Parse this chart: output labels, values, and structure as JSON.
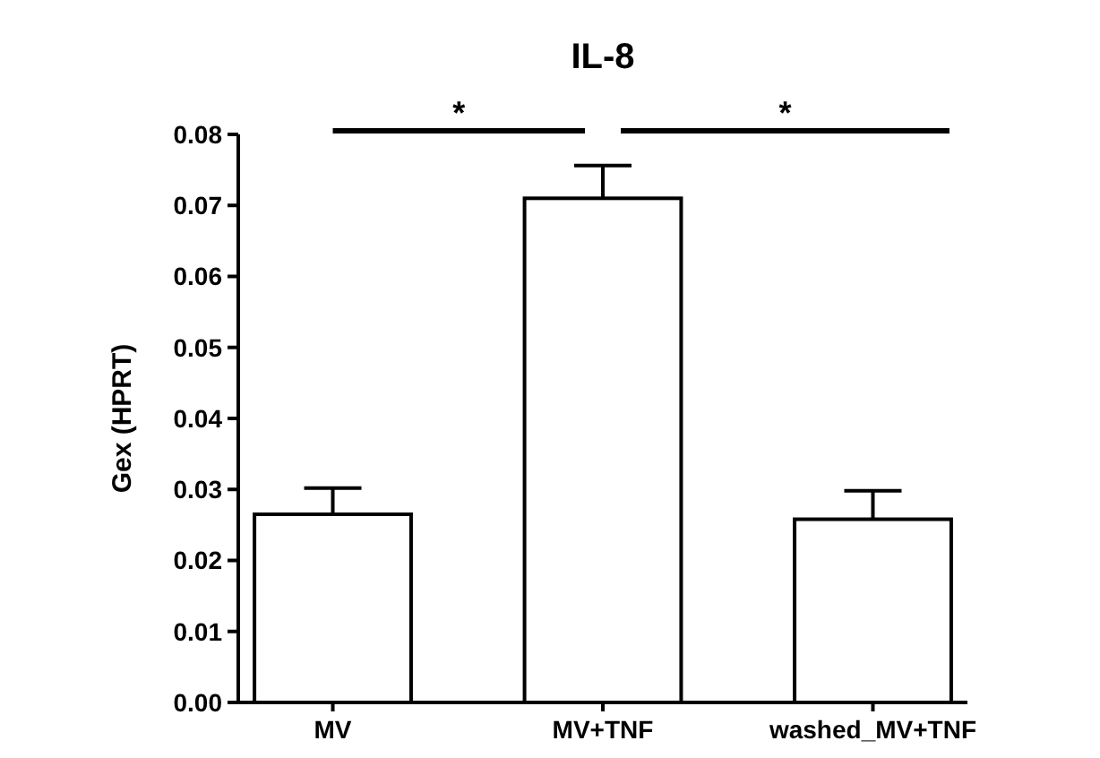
{
  "chart_data": {
    "type": "bar",
    "title": "IL-8",
    "ylabel": "Gex (HPRT)",
    "categories": [
      "MV",
      "MV+TNF",
      "washed_MV+TNF"
    ],
    "values": [
      0.0265,
      0.071,
      0.0258
    ],
    "errors": [
      [
        0.0265,
        0.0302
      ],
      [
        0.071,
        0.0756
      ],
      [
        0.0258,
        0.0298
      ]
    ],
    "color": "#ffffff",
    "ylim": [
      0,
      0.08
    ],
    "yticks": [
      {
        "value": 0,
        "label": "0.00"
      },
      {
        "value": 0.01,
        "label": "0.01"
      },
      {
        "value": 0.02,
        "label": "0.02"
      },
      {
        "value": 0.03,
        "label": "0.03"
      },
      {
        "value": 0.04,
        "label": "0.04"
      },
      {
        "value": 0.05,
        "label": "0.05"
      },
      {
        "value": 0.06,
        "label": "0.06"
      },
      {
        "value": 0.07,
        "label": "0.07"
      },
      {
        "value": 0.08,
        "label": "0.08"
      }
    ],
    "grid": false,
    "annotations": [
      "*",
      "*"
    ]
  }
}
